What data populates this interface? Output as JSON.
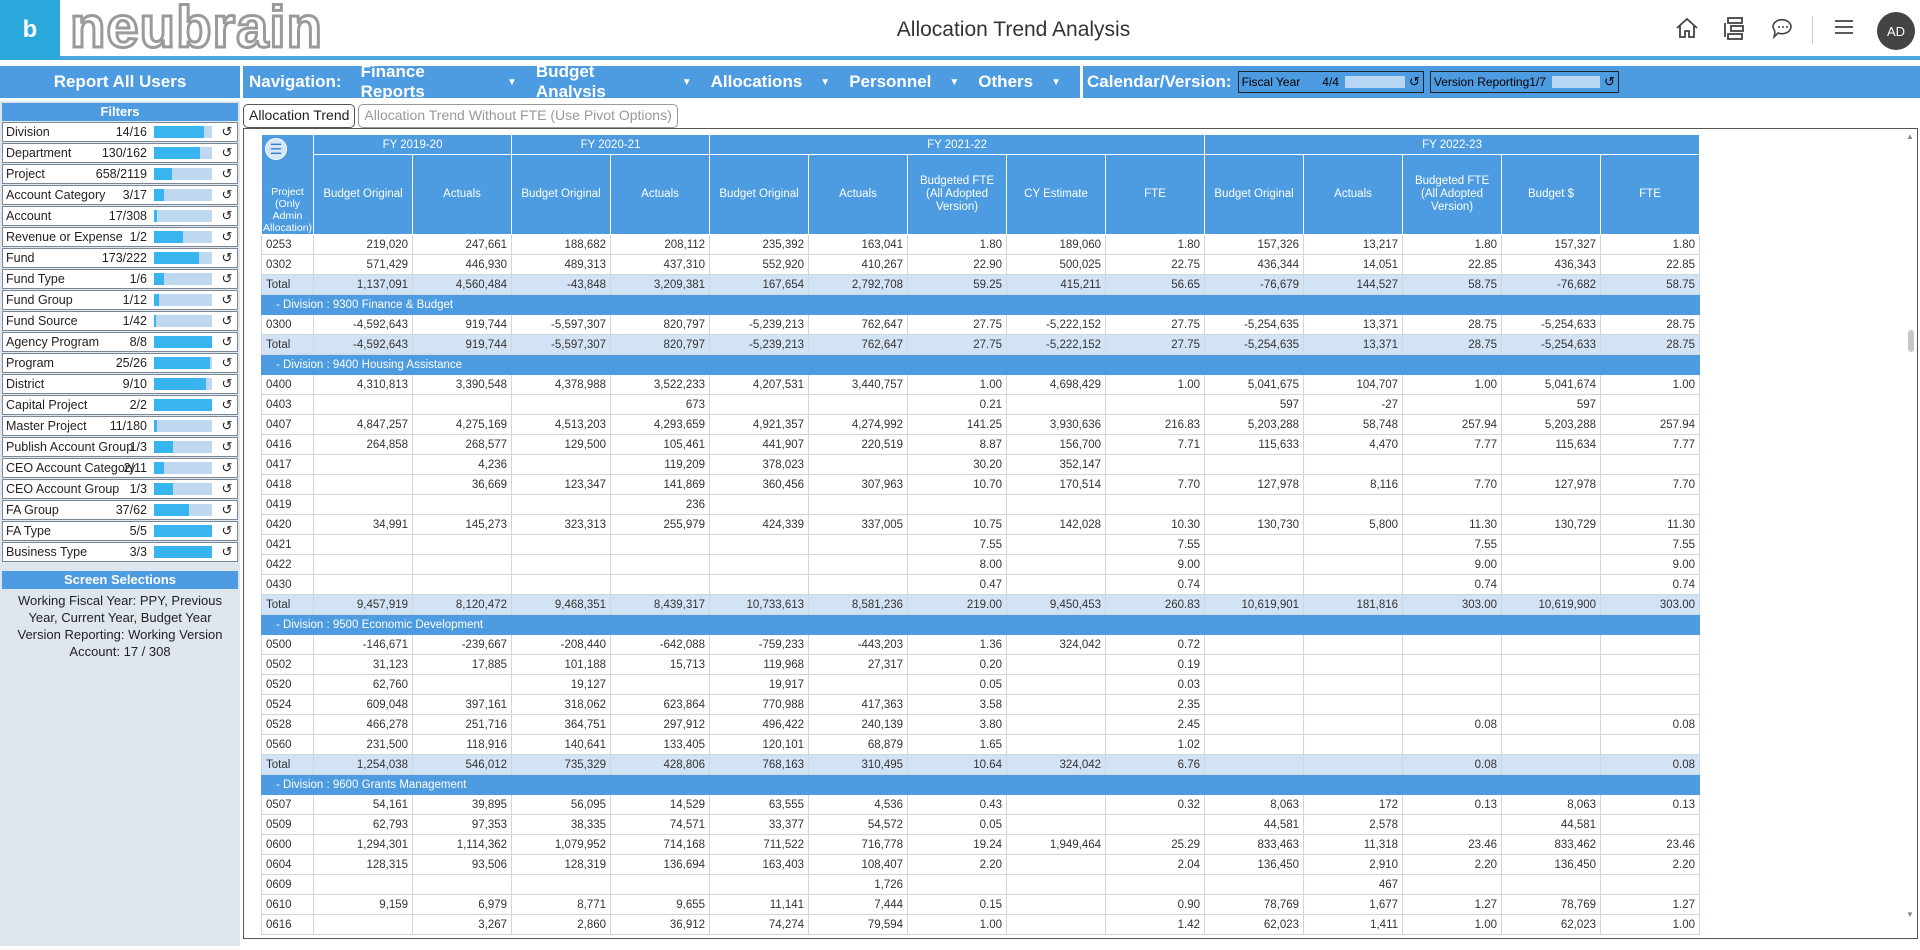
{
  "app": {
    "logo_letter": "b",
    "logo_text": "neubrain",
    "title": "Allocation Trend Analysis",
    "avatar": "AD"
  },
  "colors": {
    "accent": "#4d9be0",
    "logo": "#2aa8dc",
    "subtotal": "#d3e3f6"
  },
  "header_icons": [
    "home-icon",
    "hierarchy-icon",
    "chat-icon",
    "menu-icon"
  ],
  "report_label": "Report All Users",
  "nav": {
    "label": "Navigation:",
    "items": [
      "Finance Reports",
      "Budget Analysis",
      "Allocations",
      "Personnel",
      "Others"
    ]
  },
  "calendar": {
    "label": "Calendar/Version:",
    "fiscal_year": {
      "name": "Fiscal Year",
      "count": "4/4"
    },
    "version": {
      "name": "Version Reporting",
      "count": "1/7"
    }
  },
  "filters": {
    "title": "Filters",
    "items": [
      {
        "name": "Division",
        "count": "14/16",
        "fill": 0.87
      },
      {
        "name": "Department",
        "count": "130/162",
        "fill": 0.8
      },
      {
        "name": "Project",
        "count": "658/2119",
        "fill": 0.31
      },
      {
        "name": "Account Category",
        "count": "3/17",
        "fill": 0.18
      },
      {
        "name": "Account",
        "count": "17/308",
        "fill": 0.06
      },
      {
        "name": "Revenue or Expense",
        "count": "1/2",
        "fill": 0.5
      },
      {
        "name": "Fund",
        "count": "173/222",
        "fill": 0.78
      },
      {
        "name": "Fund Type",
        "count": "1/6",
        "fill": 0.17
      },
      {
        "name": "Fund Group",
        "count": "1/12",
        "fill": 0.08
      },
      {
        "name": "Fund Source",
        "count": "1/42",
        "fill": 0.03
      },
      {
        "name": "Agency Program",
        "count": "8/8",
        "fill": 1
      },
      {
        "name": "Program",
        "count": "25/26",
        "fill": 0.96
      },
      {
        "name": "District",
        "count": "9/10",
        "fill": 0.9
      },
      {
        "name": "Capital Project",
        "count": "2/2",
        "fill": 1
      },
      {
        "name": "Master Project",
        "count": "11/180",
        "fill": 0.06
      },
      {
        "name": "Publish Account Group",
        "count": "1/3",
        "fill": 0.33
      },
      {
        "name": "CEO Account Category",
        "count": "2/11",
        "fill": 0.18
      },
      {
        "name": "CEO Account Group",
        "count": "1/3",
        "fill": 0.33
      },
      {
        "name": "FA Group",
        "count": "37/62",
        "fill": 0.6
      },
      {
        "name": "FA Type",
        "count": "5/5",
        "fill": 1
      },
      {
        "name": "Business Type",
        "count": "3/3",
        "fill": 1
      }
    ]
  },
  "screen_selections": {
    "title": "Screen Selections",
    "lines": [
      "Working Fiscal Year: PPY, Previous Year, Current Year, Budget Year",
      "Version Reporting: Working Version",
      "Account: 17 / 308"
    ]
  },
  "tabs": [
    {
      "label": "Allocation Trend",
      "active": true
    },
    {
      "label": "Allocation Trend Without FTE (Use Pivot Options)",
      "active": false
    }
  ],
  "table": {
    "corner": "Project (Only Admin Allocation)",
    "years": [
      {
        "label": "FY 2019-20",
        "span": 2
      },
      {
        "label": "FY 2020-21",
        "span": 2
      },
      {
        "label": "FY 2021-22",
        "span": 5
      },
      {
        "label": "FY 2022-23",
        "span": 5
      }
    ],
    "columns": [
      "Budget Original",
      "Actuals",
      "Budget Original",
      "Actuals",
      "Budget Original",
      "Actuals",
      "Budgeted FTE (All Adopted Version)",
      "CY Estimate",
      "FTE",
      "Budget Original",
      "Actuals",
      "Budgeted FTE (All Adopted Version)",
      "Budget $",
      "FTE"
    ],
    "rows": [
      {
        "t": "d",
        "c": [
          "0253",
          "219,020",
          "247,661",
          "188,682",
          "208,112",
          "235,392",
          "163,041",
          "1.80",
          "189,060",
          "1.80",
          "157,326",
          "13,217",
          "1.80",
          "157,327",
          "1.80"
        ]
      },
      {
        "t": "d",
        "c": [
          "0302",
          "571,429",
          "446,930",
          "489,313",
          "437,310",
          "552,920",
          "410,267",
          "22.90",
          "500,025",
          "22.75",
          "436,344",
          "14,051",
          "22.85",
          "436,343",
          "22.85"
        ]
      },
      {
        "t": "tot",
        "c": [
          "Total",
          "1,137,091",
          "4,560,484",
          "-43,848",
          "3,209,381",
          "167,654",
          "2,792,708",
          "59.25",
          "415,211",
          "56.65",
          "-76,679",
          "144,527",
          "58.75",
          "-76,682",
          "58.75"
        ]
      },
      {
        "t": "div",
        "label": "-  Division : 9300 Finance & Budget"
      },
      {
        "t": "d",
        "c": [
          "0300",
          "-4,592,643",
          "919,744",
          "-5,597,307",
          "820,797",
          "-5,239,213",
          "762,647",
          "27.75",
          "-5,222,152",
          "27.75",
          "-5,254,635",
          "13,371",
          "28.75",
          "-5,254,633",
          "28.75"
        ]
      },
      {
        "t": "tot",
        "c": [
          "Total",
          "-4,592,643",
          "919,744",
          "-5,597,307",
          "820,797",
          "-5,239,213",
          "762,647",
          "27.75",
          "-5,222,152",
          "27.75",
          "-5,254,635",
          "13,371",
          "28.75",
          "-5,254,633",
          "28.75"
        ]
      },
      {
        "t": "div",
        "label": "-  Division : 9400 Housing Assistance"
      },
      {
        "t": "d",
        "c": [
          "0400",
          "4,310,813",
          "3,390,548",
          "4,378,988",
          "3,522,233",
          "4,207,531",
          "3,440,757",
          "1.00",
          "4,698,429",
          "1.00",
          "5,041,675",
          "104,707",
          "1.00",
          "5,041,674",
          "1.00"
        ]
      },
      {
        "t": "d",
        "c": [
          "0403",
          "",
          "",
          "",
          "673",
          "",
          "",
          "0.21",
          "",
          "",
          "597",
          "-27",
          "",
          "597",
          ""
        ]
      },
      {
        "t": "d",
        "c": [
          "0407",
          "4,847,257",
          "4,275,169",
          "4,513,203",
          "4,293,659",
          "4,921,357",
          "4,274,992",
          "141.25",
          "3,930,636",
          "216.83",
          "5,203,288",
          "58,748",
          "257.94",
          "5,203,288",
          "257.94"
        ]
      },
      {
        "t": "d",
        "c": [
          "0416",
          "264,858",
          "268,577",
          "129,500",
          "105,461",
          "441,907",
          "220,519",
          "8.87",
          "156,700",
          "7.71",
          "115,633",
          "4,470",
          "7.77",
          "115,634",
          "7.77"
        ]
      },
      {
        "t": "d",
        "c": [
          "0417",
          "",
          "4,236",
          "",
          "119,209",
          "378,023",
          "",
          "30.20",
          "352,147",
          "",
          "",
          "",
          "",
          "",
          ""
        ]
      },
      {
        "t": "d",
        "c": [
          "0418",
          "",
          "36,669",
          "123,347",
          "141,869",
          "360,456",
          "307,963",
          "10.70",
          "170,514",
          "7.70",
          "127,978",
          "8,116",
          "7.70",
          "127,978",
          "7.70"
        ]
      },
      {
        "t": "d",
        "c": [
          "0419",
          "",
          "",
          "",
          "236",
          "",
          "",
          "",
          "",
          "",
          "",
          "",
          "",
          "",
          ""
        ]
      },
      {
        "t": "d",
        "c": [
          "0420",
          "34,991",
          "145,273",
          "323,313",
          "255,979",
          "424,339",
          "337,005",
          "10.75",
          "142,028",
          "10.30",
          "130,730",
          "5,800",
          "11.30",
          "130,729",
          "11.30"
        ]
      },
      {
        "t": "d",
        "c": [
          "0421",
          "",
          "",
          "",
          "",
          "",
          "",
          "7.55",
          "",
          "7.55",
          "",
          "",
          "7.55",
          "",
          "7.55"
        ]
      },
      {
        "t": "d",
        "c": [
          "0422",
          "",
          "",
          "",
          "",
          "",
          "",
          "8.00",
          "",
          "9.00",
          "",
          "",
          "9.00",
          "",
          "9.00"
        ]
      },
      {
        "t": "d",
        "c": [
          "0430",
          "",
          "",
          "",
          "",
          "",
          "",
          "0.47",
          "",
          "0.74",
          "",
          "",
          "0.74",
          "",
          "0.74"
        ]
      },
      {
        "t": "tot",
        "c": [
          "Total",
          "9,457,919",
          "8,120,472",
          "9,468,351",
          "8,439,317",
          "10,733,613",
          "8,581,236",
          "219.00",
          "9,450,453",
          "260.83",
          "10,619,901",
          "181,816",
          "303.00",
          "10,619,900",
          "303.00"
        ]
      },
      {
        "t": "div",
        "label": "-  Division : 9500 Economic Development"
      },
      {
        "t": "d",
        "c": [
          "0500",
          "-146,671",
          "-239,667",
          "-208,440",
          "-642,088",
          "-759,233",
          "-443,203",
          "1.36",
          "324,042",
          "0.72",
          "",
          "",
          "",
          "",
          ""
        ]
      },
      {
        "t": "d",
        "c": [
          "0502",
          "31,123",
          "17,885",
          "101,188",
          "15,713",
          "119,968",
          "27,317",
          "0.20",
          "",
          "0.19",
          "",
          "",
          "",
          "",
          ""
        ]
      },
      {
        "t": "d",
        "c": [
          "0520",
          "62,760",
          "",
          "19,127",
          "",
          "19,917",
          "",
          "0.05",
          "",
          "0.03",
          "",
          "",
          "",
          "",
          ""
        ]
      },
      {
        "t": "d",
        "c": [
          "0524",
          "609,048",
          "397,161",
          "318,062",
          "623,864",
          "770,988",
          "417,363",
          "3.58",
          "",
          "2.35",
          "",
          "",
          "",
          "",
          ""
        ]
      },
      {
        "t": "d",
        "c": [
          "0528",
          "466,278",
          "251,716",
          "364,751",
          "297,912",
          "496,422",
          "240,139",
          "3.80",
          "",
          "2.45",
          "",
          "",
          "0.08",
          "",
          "0.08"
        ]
      },
      {
        "t": "d",
        "c": [
          "0560",
          "231,500",
          "118,916",
          "140,641",
          "133,405",
          "120,101",
          "68,879",
          "1.65",
          "",
          "1.02",
          "",
          "",
          "",
          "",
          ""
        ]
      },
      {
        "t": "tot",
        "c": [
          "Total",
          "1,254,038",
          "546,012",
          "735,329",
          "428,806",
          "768,163",
          "310,495",
          "10.64",
          "324,042",
          "6.76",
          "",
          "",
          "0.08",
          "",
          "0.08"
        ]
      },
      {
        "t": "div",
        "label": "-  Division : 9600 Grants Management"
      },
      {
        "t": "d",
        "c": [
          "0507",
          "54,161",
          "39,895",
          "56,095",
          "14,529",
          "63,555",
          "4,536",
          "0.43",
          "",
          "0.32",
          "8,063",
          "172",
          "0.13",
          "8,063",
          "0.13"
        ]
      },
      {
        "t": "d",
        "c": [
          "0509",
          "62,793",
          "97,353",
          "38,335",
          "74,571",
          "33,377",
          "54,572",
          "0.05",
          "",
          "",
          "44,581",
          "2,578",
          "",
          "44,581",
          ""
        ]
      },
      {
        "t": "d",
        "c": [
          "0600",
          "1,294,301",
          "1,114,362",
          "1,079,952",
          "714,168",
          "711,522",
          "716,778",
          "19.24",
          "1,949,464",
          "25.29",
          "833,463",
          "11,318",
          "23.46",
          "833,462",
          "23.46"
        ]
      },
      {
        "t": "d",
        "c": [
          "0604",
          "128,315",
          "93,506",
          "128,319",
          "136,694",
          "163,403",
          "108,407",
          "2.20",
          "",
          "2.04",
          "136,450",
          "2,910",
          "2.20",
          "136,450",
          "2.20"
        ]
      },
      {
        "t": "d",
        "c": [
          "0609",
          "",
          "",
          "",
          "",
          "",
          "1,726",
          "",
          "",
          "",
          "",
          "467",
          "",
          "",
          ""
        ]
      },
      {
        "t": "d",
        "c": [
          "0610",
          "9,159",
          "6,979",
          "8,771",
          "9,655",
          "11,141",
          "7,444",
          "0.15",
          "",
          "0.90",
          "78,769",
          "1,677",
          "1.27",
          "78,769",
          "1.27"
        ]
      },
      {
        "t": "d",
        "c": [
          "0616",
          "",
          "3,267",
          "2,860",
          "36,912",
          "74,274",
          "79,594",
          "1.00",
          "",
          "1.42",
          "62,023",
          "1,411",
          "1.00",
          "62,023",
          "1.00"
        ]
      }
    ]
  }
}
